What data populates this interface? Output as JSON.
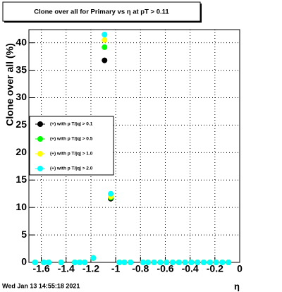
{
  "chart_data": {
    "type": "scatter",
    "title": "Clone  over all for Primary vs   η at pT > 0.11",
    "y_label": "Clone  over all (%)",
    "x_label": "η",
    "timestamp": "Wed Jan 13 14:55:18 2021",
    "x": [
      -1.65,
      -1.58,
      -1.54,
      -1.44,
      -1.33,
      -1.29,
      -1.25,
      -1.18,
      -1.09,
      -1.04,
      -0.97,
      -0.93,
      -0.88,
      -0.78,
      -0.74,
      -0.69,
      -0.64,
      -0.59,
      -0.54,
      -0.49,
      -0.44,
      -0.39,
      -0.34,
      -0.29,
      -0.24,
      -0.19,
      -0.14,
      -0.09
    ],
    "series": [
      {
        "name": "(+) with p T/|q| > 0.1",
        "color": "#000000",
        "values": [
          0,
          0,
          0,
          0,
          0,
          0,
          0,
          0.8,
          36.8,
          11.6,
          0,
          0,
          0,
          0,
          0,
          0,
          0,
          0,
          0,
          0,
          0,
          0,
          0,
          0,
          0,
          0,
          0,
          0
        ]
      },
      {
        "name": "(+) with p T/|q| > 0.5",
        "color": "#00ff00",
        "values": [
          0,
          0,
          0,
          0,
          0,
          0,
          0,
          0.8,
          39.2,
          11.8,
          0,
          0,
          0,
          0,
          0,
          0,
          0,
          0,
          0,
          0,
          0,
          0,
          0,
          0,
          0,
          0,
          0,
          0
        ]
      },
      {
        "name": "(+) with p T/|q| > 1.0",
        "color": "#ffff00",
        "values": [
          0,
          0,
          0,
          0,
          0,
          0,
          0,
          0.8,
          40.5,
          12.0,
          0,
          0,
          0,
          0,
          0,
          0,
          0,
          0,
          0,
          0,
          0,
          0,
          0,
          0,
          0,
          0,
          0,
          0
        ]
      },
      {
        "name": "(+) with p T/|q| > 2.0",
        "color": "#00ffff",
        "values": [
          0,
          0,
          0,
          0,
          0,
          0,
          0,
          0.8,
          41.5,
          12.5,
          0,
          0,
          0,
          0,
          0,
          0,
          0,
          0,
          0,
          0,
          0,
          0,
          0,
          0,
          0,
          0,
          0,
          0
        ]
      }
    ],
    "xlim": [
      -1.7,
      0
    ],
    "xticks": [
      -1.6,
      -1.4,
      -1.2,
      -1,
      -0.8,
      -0.6,
      -0.4,
      -0.2,
      0
    ],
    "ylim": [
      0,
      42.4
    ],
    "yticks": [
      0,
      5,
      10,
      15,
      20,
      25,
      30,
      35,
      40
    ],
    "grid": true,
    "legend": "left"
  }
}
